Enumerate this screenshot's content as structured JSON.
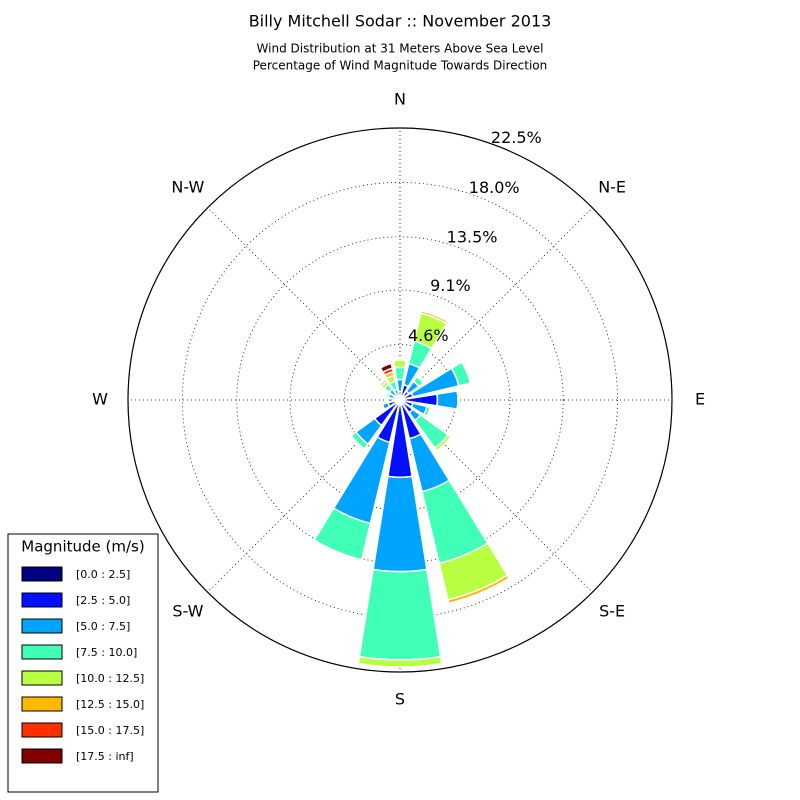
{
  "chart_data": {
    "type": "windrose",
    "title": "Billy Mitchell Sodar :: November 2013",
    "subtitle": [
      "Wind Distribution at 31 Meters Above Sea Level",
      "Percentage of Wind Magnitude Towards Direction"
    ],
    "x": [
      0,
      22.5,
      45,
      67.5,
      90,
      112.5,
      135,
      157.5,
      180,
      202.5,
      225,
      247.5,
      270,
      292.5,
      315,
      337.5
    ],
    "xticks": [
      {
        "value": 0,
        "label": "N"
      },
      {
        "value": 45,
        "label": "N-E"
      },
      {
        "value": 90,
        "label": "E"
      },
      {
        "value": 135,
        "label": "S-E"
      },
      {
        "value": 180,
        "label": "S"
      },
      {
        "value": 225,
        "label": "S-W"
      },
      {
        "value": 270,
        "label": "W"
      },
      {
        "value": 315,
        "label": "N-W"
      }
    ],
    "ylim": [
      0,
      22.5
    ],
    "yticks": [
      {
        "value": 4.6,
        "label": "4.6%"
      },
      {
        "value": 9.1,
        "label": "9.1%"
      },
      {
        "value": 13.5,
        "label": "13.5%"
      },
      {
        "value": 18.0,
        "label": "18.0%"
      },
      {
        "value": 22.5,
        "label": "22.5%"
      }
    ],
    "grid": true,
    "legend_title": "Magnitude (m/s)",
    "legend_loc": "lower left",
    "series": [
      {
        "name": "[0.0 : 2.5]",
        "color": "#000080",
        "values": [
          0.1,
          0.1,
          0.1,
          0.1,
          0.1,
          0.1,
          0.1,
          0.1,
          0.1,
          0.1,
          0.1,
          0.1,
          0.1,
          0.1,
          0.1,
          0.1
        ]
      },
      {
        "name": "[2.5 : 5.0]",
        "color": "#0010ff",
        "values": [
          0.6,
          1.2,
          0.8,
          1.0,
          3.0,
          1.0,
          1.2,
          3.2,
          6.3,
          3.5,
          2.5,
          0.9,
          0.5,
          0.4,
          0.4,
          0.3
        ]
      },
      {
        "name": "[5.0 : 7.5]",
        "color": "#00a4ff",
        "values": [
          1.0,
          1.8,
          1.0,
          3.9,
          1.7,
          1.2,
          0.8,
          4.5,
          7.8,
          6.9,
          1.9,
          0.5,
          0.4,
          0.5,
          0.6,
          0.5
        ]
      },
      {
        "name": "[7.5 : 10.0]",
        "color": "#40ffb7",
        "values": [
          1.0,
          1.9,
          0.5,
          1.0,
          0,
          0.3,
          2.8,
          6.1,
          7.3,
          3.1,
          0.5,
          0,
          0,
          0.2,
          0.5,
          0.7
        ]
      },
      {
        "name": "[10.0 : 12.5]",
        "color": "#b7ff40",
        "values": [
          0.6,
          2.4,
          0,
          0,
          0,
          0,
          0.3,
          3.1,
          0.6,
          0,
          0,
          0,
          0,
          0,
          0.3,
          0.5
        ]
      },
      {
        "name": "[12.5 : 15.0]",
        "color": "#ffb900",
        "values": [
          0,
          0.2,
          0,
          0,
          0,
          0,
          0,
          0.3,
          0,
          0,
          0,
          0,
          0,
          0,
          0.2,
          0.3
        ]
      },
      {
        "name": "[15.0 : 17.5]",
        "color": "#ff3000",
        "values": [
          0,
          0,
          0,
          0,
          0,
          0,
          0,
          0,
          0,
          0,
          0,
          0,
          0,
          0,
          0,
          0.3
        ]
      },
      {
        "name": "[17.5 : inf]",
        "color": "#800000",
        "values": [
          0,
          0,
          0,
          0,
          0,
          0,
          0,
          0,
          0,
          0,
          0,
          0,
          0,
          0,
          0,
          0.4
        ]
      }
    ]
  }
}
